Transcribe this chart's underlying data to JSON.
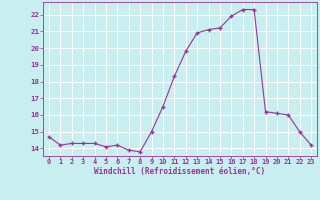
{
  "x": [
    0,
    1,
    2,
    3,
    4,
    5,
    6,
    7,
    8,
    9,
    10,
    11,
    12,
    13,
    14,
    15,
    16,
    17,
    18,
    19,
    20,
    21,
    22,
    23
  ],
  "y": [
    14.7,
    14.2,
    14.3,
    14.3,
    14.3,
    14.1,
    14.2,
    13.9,
    13.8,
    15.0,
    16.5,
    18.3,
    19.8,
    20.9,
    21.1,
    21.2,
    21.9,
    22.3,
    22.3,
    16.2,
    16.1,
    16.0,
    15.0,
    14.2
  ],
  "line_color": "#993399",
  "marker_color": "#993399",
  "bg_color": "#c8eef0",
  "grid_color": "#b0d8dc",
  "xlabel": "Windchill (Refroidissement éolien,°C)",
  "ylabel_ticks": [
    14,
    15,
    16,
    17,
    18,
    19,
    20,
    21,
    22
  ],
  "ylim": [
    13.55,
    22.75
  ],
  "xlim": [
    -0.5,
    23.5
  ],
  "tick_color": "#993399",
  "label_color": "#993399",
  "font_name": "monospace",
  "tick_fontsize": 5.0,
  "label_fontsize": 5.5
}
